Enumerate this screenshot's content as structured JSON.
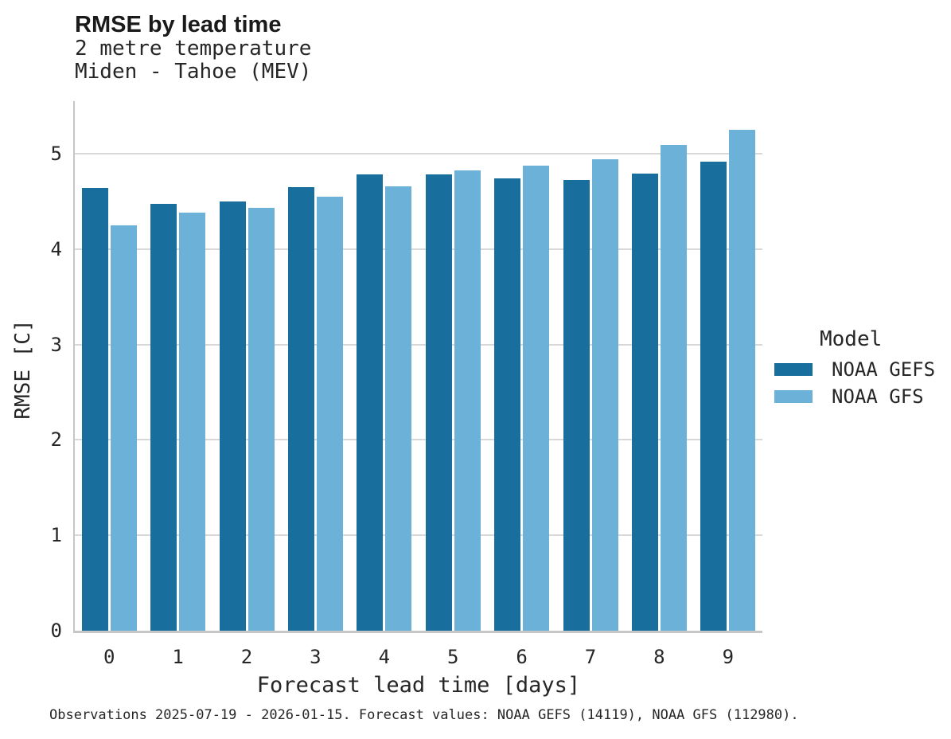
{
  "header": {
    "title": "RMSE by lead time",
    "subtitle_line1": "2 metre temperature",
    "subtitle_line2": "Miden - Tahoe (MEV)"
  },
  "chart_data": {
    "type": "bar",
    "title": "RMSE by lead time",
    "subtitle": "2 metre temperature / Miden - Tahoe (MEV)",
    "categories": [
      "0",
      "1",
      "2",
      "3",
      "4",
      "5",
      "6",
      "7",
      "8",
      "9"
    ],
    "series": [
      {
        "name": "NOAA GEFS",
        "color": "#186e9d",
        "values": [
          4.64,
          4.47,
          4.5,
          4.65,
          4.78,
          4.78,
          4.74,
          4.72,
          4.79,
          4.92
        ]
      },
      {
        "name": "NOAA GFS",
        "color": "#6cb1d8",
        "values": [
          4.25,
          4.38,
          4.43,
          4.55,
          4.66,
          4.82,
          4.87,
          4.94,
          5.09,
          5.25
        ]
      }
    ],
    "xlabel": "Forecast lead time [days]",
    "ylabel": "RMSE [C]",
    "ylim": [
      0,
      5.55
    ],
    "yticks": [
      0,
      1,
      2,
      3,
      4,
      5
    ],
    "grid": true,
    "legend_position": "right"
  },
  "legend": {
    "title": "Model",
    "items": [
      {
        "label": "NOAA GEFS",
        "color": "#186e9d"
      },
      {
        "label": "NOAA GFS",
        "color": "#6cb1d8"
      }
    ]
  },
  "footer": {
    "caption": "Observations 2025-07-19 - 2026-01-15. Forecast values: NOAA GEFS (14119), NOAA GFS (112980)."
  },
  "colors": {
    "series_dark": "#186e9d",
    "series_light": "#6cb1d8",
    "spine": "#c6c6c6",
    "gridline": "#d8d8d8",
    "text": "#262626"
  }
}
